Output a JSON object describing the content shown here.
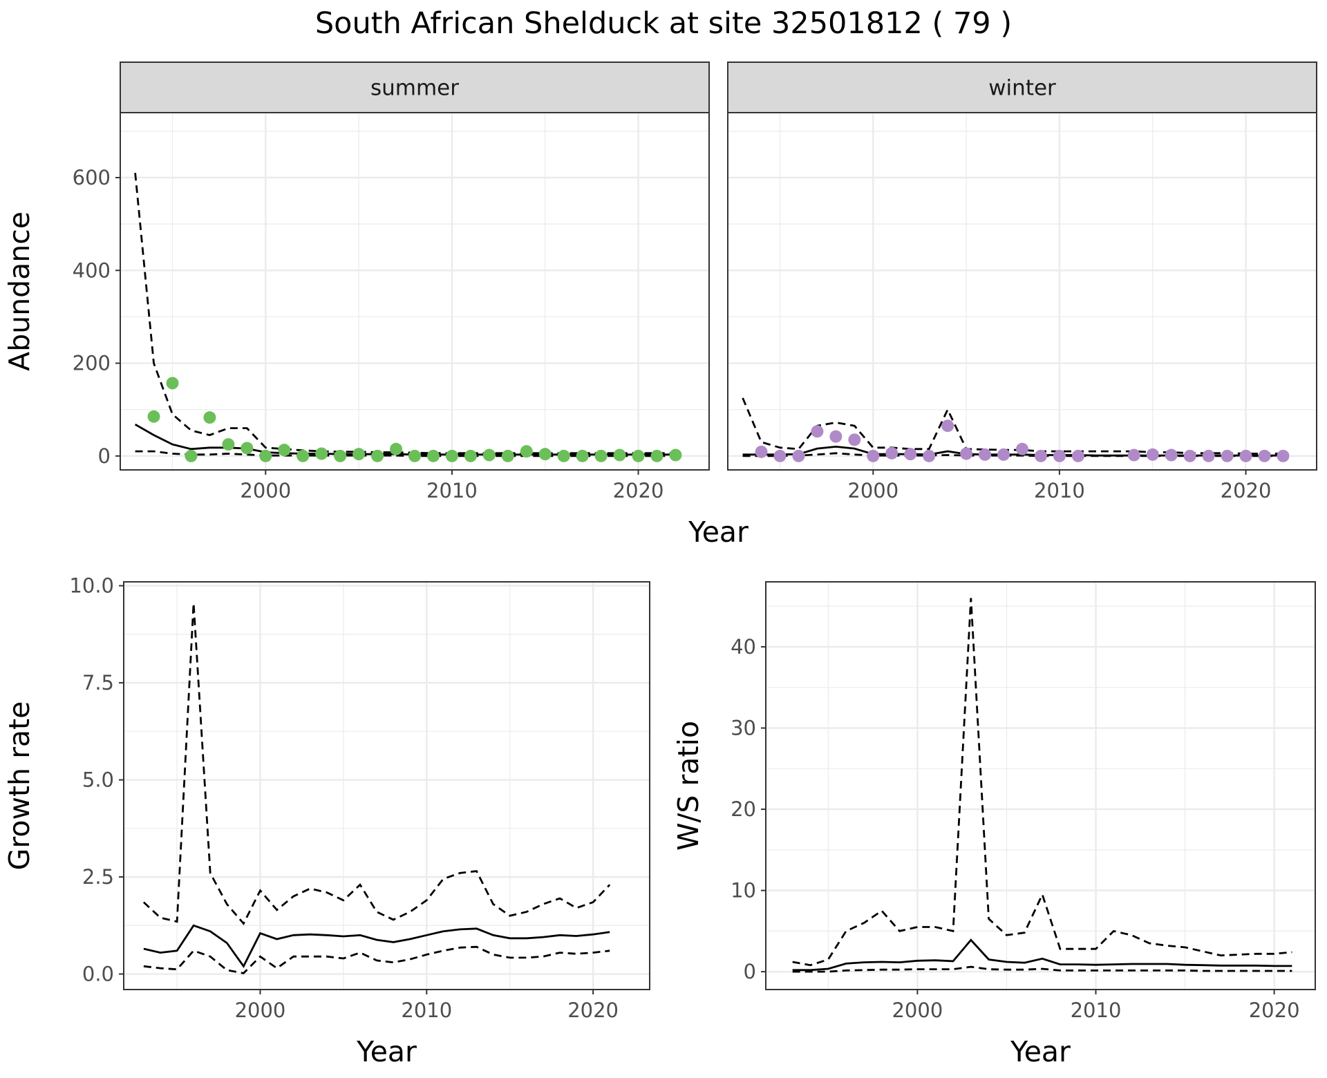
{
  "title": "South African Shelduck at site 32501812 ( 79 )",
  "colors": {
    "summer": "#6bbf59",
    "winter": "#b08ac8",
    "line": "#000000",
    "strip": "#d9d9d9",
    "grid": "#ebebeb"
  },
  "chart_data": [
    {
      "type": "line",
      "panel": "summer",
      "strip_label": "summer",
      "xlabel": "Year",
      "ylabel": "Abundance",
      "xlim": [
        1992.2,
        2023.8
      ],
      "ylim": [
        -30,
        740
      ],
      "xticks": [
        2000,
        2010,
        2020
      ],
      "yticks": [
        0,
        200,
        400,
        600
      ],
      "x_line": [
        1993,
        1994,
        1995,
        1996,
        1997,
        1998,
        1999,
        2000,
        2001,
        2002,
        2003,
        2004,
        2005,
        2006,
        2007,
        2008,
        2009,
        2010,
        2011,
        2012,
        2013,
        2014,
        2015,
        2016,
        2017,
        2018,
        2019,
        2020,
        2021,
        2022
      ],
      "mean": [
        68,
        45,
        25,
        15,
        18,
        18,
        16,
        8,
        6,
        5,
        5,
        4,
        4,
        4,
        4,
        3,
        3,
        3,
        3,
        3,
        3,
        3,
        3,
        3,
        3,
        3,
        3,
        3,
        3,
        3
      ],
      "upper": [
        610,
        200,
        90,
        55,
        45,
        60,
        60,
        18,
        15,
        12,
        10,
        9,
        9,
        8,
        8,
        7,
        6,
        6,
        6,
        6,
        6,
        6,
        6,
        6,
        6,
        6,
        6,
        6,
        6,
        6
      ],
      "lower": [
        10,
        10,
        5,
        3,
        3,
        5,
        3,
        1,
        1,
        1,
        1,
        1,
        1,
        1,
        1,
        0,
        0,
        0,
        0,
        0,
        0,
        0,
        0,
        0,
        0,
        0,
        0,
        0,
        0,
        0
      ],
      "points_x": [
        1994,
        1995,
        1996,
        1997,
        1998,
        1999,
        2000,
        2001,
        2002,
        2003,
        2004,
        2005,
        2006,
        2007,
        2008,
        2009,
        2010,
        2011,
        2012,
        2013,
        2014,
        2015,
        2016,
        2017,
        2018,
        2019,
        2020,
        2021,
        2022
      ],
      "points_y": [
        85,
        157,
        0,
        83,
        25,
        17,
        0,
        13,
        0,
        5,
        0,
        4,
        0,
        15,
        0,
        0,
        0,
        0,
        2,
        0,
        10,
        4,
        0,
        0,
        0,
        2,
        0,
        0,
        2
      ]
    },
    {
      "type": "line",
      "panel": "winter",
      "strip_label": "winter",
      "xlabel": "Year",
      "ylabel": "",
      "xlim": [
        1992.2,
        2023.8
      ],
      "ylim": [
        -30,
        740
      ],
      "xticks": [
        2000,
        2010,
        2020
      ],
      "x_line": [
        1993,
        1994,
        1995,
        1996,
        1997,
        1998,
        1999,
        2000,
        2001,
        2002,
        2003,
        2004,
        2005,
        2006,
        2007,
        2008,
        2009,
        2010,
        2011,
        2012,
        2013,
        2014,
        2015,
        2016,
        2017,
        2018,
        2019,
        2020,
        2021,
        2022
      ],
      "mean": [
        3,
        3,
        3,
        4,
        16,
        20,
        16,
        4,
        4,
        4,
        3,
        10,
        4,
        3,
        3,
        3,
        2,
        2,
        2,
        1,
        1,
        1,
        1,
        1,
        1,
        1,
        1,
        1,
        1,
        1
      ],
      "upper": [
        125,
        30,
        18,
        15,
        65,
        72,
        65,
        18,
        18,
        15,
        15,
        100,
        15,
        14,
        13,
        13,
        10,
        10,
        10,
        10,
        10,
        10,
        8,
        8,
        6,
        6,
        6,
        5,
        5,
        5
      ],
      "lower": [
        0,
        0,
        0,
        1,
        3,
        6,
        3,
        1,
        1,
        1,
        1,
        2,
        1,
        1,
        1,
        1,
        0,
        0,
        0,
        0,
        0,
        0,
        0,
        0,
        0,
        0,
        0,
        0,
        0,
        0
      ],
      "points_x": [
        1994,
        1995,
        1996,
        1997,
        1998,
        1999,
        2000,
        2001,
        2002,
        2003,
        2004,
        2005,
        2006,
        2007,
        2008,
        2009,
        2010,
        2011,
        2014,
        2015,
        2016,
        2017,
        2018,
        2019,
        2020,
        2021,
        2022
      ],
      "points_y": [
        9,
        0,
        0,
        53,
        42,
        35,
        0,
        6,
        4,
        0,
        65,
        5,
        3,
        3,
        15,
        0,
        0,
        0,
        2,
        3,
        2,
        0,
        0,
        0,
        0,
        0,
        0
      ]
    },
    {
      "type": "line",
      "panel": "growth",
      "xlabel": "Year",
      "ylabel": "Growth rate",
      "xlim": [
        1991.8,
        2023.4
      ],
      "ylim": [
        -0.4,
        10.1
      ],
      "xticks": [
        2000,
        2010,
        2020
      ],
      "yticks": [
        0.0,
        2.5,
        5.0,
        7.5,
        10.0
      ],
      "ytick_labels": [
        "0.0",
        "2.5",
        "5.0",
        "7.5",
        "10.0"
      ],
      "x": [
        1993,
        1994,
        1995,
        1996,
        1997,
        1998,
        1999,
        2000,
        2001,
        2002,
        2003,
        2004,
        2005,
        2006,
        2007,
        2008,
        2009,
        2010,
        2011,
        2012,
        2013,
        2014,
        2015,
        2016,
        2017,
        2018,
        2019,
        2020,
        2021
      ],
      "mean": [
        0.65,
        0.55,
        0.6,
        1.25,
        1.1,
        0.8,
        0.2,
        1.05,
        0.9,
        1.0,
        1.02,
        1.0,
        0.97,
        1.0,
        0.88,
        0.82,
        0.9,
        1.0,
        1.1,
        1.15,
        1.17,
        1.0,
        0.92,
        0.92,
        0.95,
        1.0,
        0.98,
        1.02,
        1.08
      ],
      "upper": [
        1.85,
        1.45,
        1.35,
        9.55,
        2.6,
        1.8,
        1.3,
        2.15,
        1.65,
        2.0,
        2.2,
        2.1,
        1.9,
        2.3,
        1.6,
        1.4,
        1.6,
        1.9,
        2.45,
        2.6,
        2.65,
        1.8,
        1.5,
        1.6,
        1.8,
        1.95,
        1.7,
        1.85,
        2.3
      ],
      "lower": [
        0.2,
        0.15,
        0.12,
        0.6,
        0.45,
        0.1,
        0.02,
        0.45,
        0.15,
        0.45,
        0.45,
        0.45,
        0.4,
        0.55,
        0.35,
        0.3,
        0.38,
        0.5,
        0.6,
        0.68,
        0.7,
        0.5,
        0.42,
        0.42,
        0.45,
        0.55,
        0.52,
        0.55,
        0.6
      ]
    },
    {
      "type": "line",
      "panel": "ratio",
      "xlabel": "Year",
      "ylabel": "W/S ratio",
      "xlim": [
        1991.5,
        2022.3
      ],
      "ylim": [
        -2.2,
        48
      ],
      "xticks": [
        2000,
        2010,
        2020
      ],
      "yticks": [
        0,
        10,
        20,
        30,
        40
      ],
      "x": [
        1993,
        1994,
        1995,
        1996,
        1997,
        1998,
        1999,
        2000,
        2001,
        2002,
        2003,
        2004,
        2005,
        2006,
        2007,
        2008,
        2009,
        2010,
        2011,
        2012,
        2013,
        2014,
        2015,
        2016,
        2017,
        2018,
        2019,
        2020,
        2021
      ],
      "mean": [
        0.2,
        0.2,
        0.35,
        1.0,
        1.15,
        1.2,
        1.15,
        1.35,
        1.4,
        1.3,
        3.9,
        1.5,
        1.2,
        1.1,
        1.6,
        0.9,
        0.9,
        0.85,
        0.9,
        0.95,
        0.95,
        0.95,
        0.85,
        0.8,
        0.75,
        0.75,
        0.75,
        0.7,
        0.7
      ],
      "upper": [
        1.2,
        0.8,
        1.5,
        5.0,
        6.0,
        7.5,
        5.0,
        5.5,
        5.5,
        5.0,
        46.0,
        6.5,
        4.5,
        4.8,
        9.5,
        2.8,
        2.8,
        2.8,
        5.0,
        4.5,
        3.5,
        3.2,
        3.0,
        2.5,
        2.0,
        2.1,
        2.2,
        2.2,
        2.4
      ],
      "lower": [
        0.0,
        0.0,
        0.0,
        0.15,
        0.2,
        0.25,
        0.25,
        0.3,
        0.3,
        0.3,
        0.6,
        0.3,
        0.25,
        0.25,
        0.35,
        0.15,
        0.15,
        0.15,
        0.15,
        0.15,
        0.15,
        0.15,
        0.15,
        0.1,
        0.1,
        0.1,
        0.1,
        0.1,
        0.1
      ]
    }
  ]
}
